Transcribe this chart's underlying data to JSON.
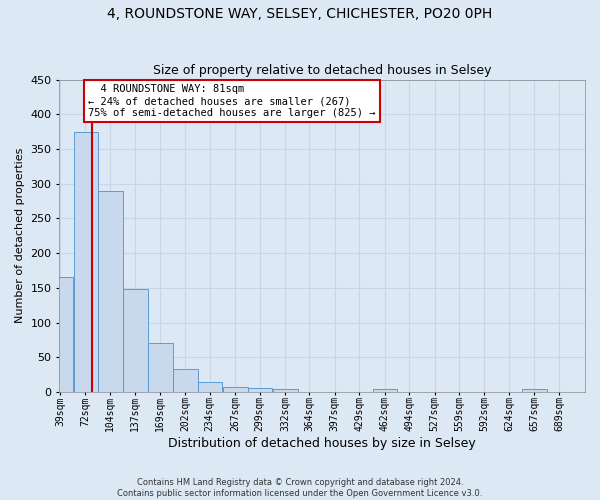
{
  "title": "4, ROUNDSTONE WAY, SELSEY, CHICHESTER, PO20 0PH",
  "subtitle": "Size of property relative to detached houses in Selsey",
  "xlabel": "Distribution of detached houses by size in Selsey",
  "ylabel": "Number of detached properties",
  "footer_line1": "Contains HM Land Registry data © Crown copyright and database right 2024.",
  "footer_line2": "Contains public sector information licensed under the Open Government Licence v3.0.",
  "bins": [
    39,
    72,
    104,
    137,
    169,
    202,
    234,
    267,
    299,
    332,
    364,
    397,
    429,
    462,
    494,
    527,
    559,
    592,
    624,
    657,
    689
  ],
  "counts": [
    165,
    375,
    290,
    148,
    70,
    33,
    14,
    7,
    6,
    4,
    0,
    0,
    0,
    5,
    0,
    0,
    0,
    0,
    0,
    4
  ],
  "bar_facecolor": "#c9d9ed",
  "bar_edgecolor": "#5b9bd5",
  "property_size": 81,
  "vline_color": "#cc0000",
  "annotation_line1": "  4 ROUNDSTONE WAY: 81sqm",
  "annotation_line2": "← 24% of detached houses are smaller (267)",
  "annotation_line3": "75% of semi-detached houses are larger (825) →",
  "annotation_box_edgecolor": "#cc0000",
  "annotation_box_facecolor": "white",
  "ylim": [
    0,
    450
  ],
  "yticks": [
    0,
    50,
    100,
    150,
    200,
    250,
    300,
    350,
    400,
    450
  ],
  "grid_color": "#c8d4e8",
  "background_color": "#dde8f5",
  "title_fontsize": 10,
  "subtitle_fontsize": 9,
  "axis_label_fontsize": 8,
  "tick_fontsize": 7,
  "footer_fontsize": 6
}
